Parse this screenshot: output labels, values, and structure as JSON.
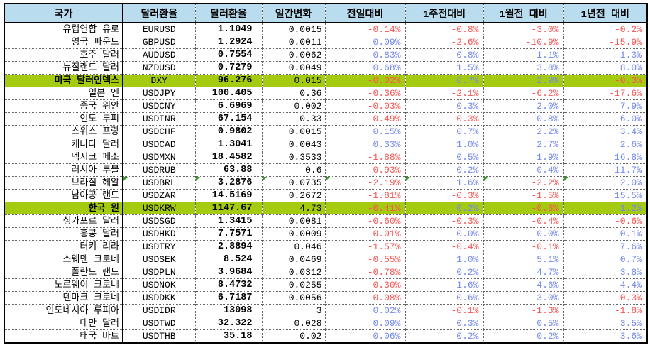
{
  "colors": {
    "header_bg": "#B9DCEE",
    "highlight_bg": "#A5CB11",
    "negative_text": "#FA5452",
    "positive_text": "#7388EE",
    "flag_triangle": "#2E9E1E",
    "grid_border": "#000000"
  },
  "table": {
    "headers": [
      "국가",
      "달러환율",
      "달러환율",
      "일간변화",
      "전일대비",
      "1주전대비",
      "1월전 대비",
      "1년전 대비"
    ],
    "rows": [
      {
        "country": "유럽연합 유로",
        "ticker": "EURUSD",
        "rate": "1.1049",
        "change": "0.0015",
        "d1": "-0.14%",
        "w1": "-0.8%",
        "m1": "-3.0%",
        "y1": "-0.2%",
        "highlight": false,
        "flags": false
      },
      {
        "country": "영국 파운드",
        "ticker": "GBPUSD",
        "rate": "1.2924",
        "change": "0.0011",
        "d1": "0.09%",
        "w1": "-2.6%",
        "m1": "-10.9%",
        "y1": "-15.9%",
        "highlight": false,
        "flags": false
      },
      {
        "country": "호주 달러",
        "ticker": "AUDUSD",
        "rate": "0.7554",
        "change": "0.0062",
        "d1": "0.83%",
        "w1": "0.8%",
        "m1": "1.1%",
        "y1": "1.3%",
        "highlight": false,
        "flags": false
      },
      {
        "country": "뉴질랜드 달러",
        "ticker": "NZDUSD",
        "rate": "0.7279",
        "change": "0.0049",
        "d1": "0.68%",
        "w1": "1.5%",
        "m1": "3.8%",
        "y1": "8.0%",
        "highlight": false,
        "flags": false
      },
      {
        "country": "미국 달러인덱스",
        "ticker": "DXY",
        "rate": "96.276",
        "change": "0.015",
        "d1": "-0.02%",
        "w1": "0.7%",
        "m1": "2.9%",
        "y1": "-0.3%",
        "highlight": true,
        "flags": false
      },
      {
        "country": "일본 엔",
        "ticker": "USDJPY",
        "rate": "100.405",
        "change": "0.36",
        "d1": "-0.36%",
        "w1": "-2.1%",
        "m1": "-6.2%",
        "y1": "-17.6%",
        "highlight": false,
        "flags": false
      },
      {
        "country": "중국 위안",
        "ticker": "USDCNY",
        "rate": "6.6969",
        "change": "0.002",
        "d1": "-0.03%",
        "w1": "0.3%",
        "m1": "2.0%",
        "y1": "7.9%",
        "highlight": false,
        "flags": false
      },
      {
        "country": "인도 루피",
        "ticker": "USDINR",
        "rate": "67.154",
        "change": "0.33",
        "d1": "-0.49%",
        "w1": "-0.3%",
        "m1": "0.8%",
        "y1": "6.0%",
        "highlight": false,
        "flags": false
      },
      {
        "country": "스위스 프랑",
        "ticker": "USDCHF",
        "rate": "0.9802",
        "change": "0.0015",
        "d1": "0.15%",
        "w1": "0.7%",
        "m1": "2.2%",
        "y1": "3.4%",
        "highlight": false,
        "flags": false
      },
      {
        "country": "캐나다 달러",
        "ticker": "USDCAD",
        "rate": "1.3041",
        "change": "0.0043",
        "d1": "0.33%",
        "w1": "1.0%",
        "m1": "2.7%",
        "y1": "2.6%",
        "highlight": false,
        "flags": false
      },
      {
        "country": "멕시코 페소",
        "ticker": "USDMXN",
        "rate": "18.4582",
        "change": "0.3533",
        "d1": "-1.88%",
        "w1": "0.5%",
        "m1": "1.9%",
        "y1": "16.8%",
        "highlight": false,
        "flags": false
      },
      {
        "country": "러시아 루블",
        "ticker": "USDRUB",
        "rate": "63.88",
        "change": "0.6",
        "d1": "-0.93%",
        "w1": "0.2%",
        "m1": "0.4%",
        "y1": "11.7%",
        "highlight": false,
        "flags": false
      },
      {
        "country": "브라질 헤알",
        "ticker": "USDBRL",
        "rate": "3.2876",
        "change": "0.0735",
        "d1": "-2.19%",
        "w1": "1.6%",
        "m1": "-2.2%",
        "y1": "2.0%",
        "highlight": false,
        "flags": true
      },
      {
        "country": "남아공 랜드",
        "ticker": "USDZAR",
        "rate": "14.5169",
        "change": "0.2672",
        "d1": "-1.81%",
        "w1": "-0.3%",
        "m1": "-1.5%",
        "y1": "15.5%",
        "highlight": false,
        "flags": false
      },
      {
        "country": "한국 원",
        "ticker": "USDKRW",
        "rate": "1147.67",
        "change": "4.73",
        "d1": "-0.41%",
        "w1": "0.2%",
        "m1": "-0.8%",
        "y1": "1.2%",
        "highlight": true,
        "flags": false
      },
      {
        "country": "싱가포르 달러",
        "ticker": "USDSGD",
        "rate": "1.3415",
        "change": "0.0081",
        "d1": "-0.60%",
        "w1": "-0.3%",
        "m1": "-0.4%",
        "y1": "-0.6%",
        "highlight": false,
        "flags": false
      },
      {
        "country": "홍콩 달러",
        "ticker": "USDHKD",
        "rate": "7.7571",
        "change": "0.0009",
        "d1": "-0.01%",
        "w1": "0.0%",
        "m1": "0.0%",
        "y1": "0.1%",
        "highlight": false,
        "flags": false
      },
      {
        "country": "터키 리라",
        "ticker": "USDTRY",
        "rate": "2.8894",
        "change": "0.046",
        "d1": "-1.57%",
        "w1": "-0.4%",
        "m1": "-0.1%",
        "y1": "7.6%",
        "highlight": false,
        "flags": false
      },
      {
        "country": "스웨덴 크로네",
        "ticker": "USDSEK",
        "rate": "8.524",
        "change": "0.0469",
        "d1": "-0.55%",
        "w1": "1.0%",
        "m1": "5.1%",
        "y1": "0.7%",
        "highlight": false,
        "flags": false
      },
      {
        "country": "폴란드 랜드",
        "ticker": "USDPLN",
        "rate": "3.9684",
        "change": "0.0312",
        "d1": "-0.78%",
        "w1": "0.2%",
        "m1": "4.7%",
        "y1": "3.8%",
        "highlight": false,
        "flags": false
      },
      {
        "country": "노르웨이 크로네",
        "ticker": "USDNOK",
        "rate": "8.4732",
        "change": "0.0255",
        "d1": "-0.30%",
        "w1": "1.6%",
        "m1": "4.6%",
        "y1": "4.4%",
        "highlight": false,
        "flags": false
      },
      {
        "country": "덴마크 크로네",
        "ticker": "USDDKK",
        "rate": "6.7187",
        "change": "0.0056",
        "d1": "-0.08%",
        "w1": "0.6%",
        "m1": "3.0%",
        "y1": "-0.3%",
        "highlight": false,
        "flags": false
      },
      {
        "country": "인도네시아 루피아",
        "ticker": "USDIDR",
        "rate": "13098",
        "change": "3",
        "d1": "0.02%",
        "w1": "-0.1%",
        "m1": "-1.3%",
        "y1": "-1.8%",
        "highlight": false,
        "flags": false
      },
      {
        "country": "대만 달러",
        "ticker": "USDTWD",
        "rate": "32.322",
        "change": "0.028",
        "d1": "0.09%",
        "w1": "0.3%",
        "m1": "0.5%",
        "y1": "3.5%",
        "highlight": false,
        "flags": false
      },
      {
        "country": "태국 바트",
        "ticker": "USDTHB",
        "rate": "35.18",
        "change": "0.02",
        "d1": "0.06%",
        "w1": "0.2%",
        "m1": "0.2%",
        "y1": "3.6%",
        "highlight": false,
        "flags": false
      }
    ]
  }
}
